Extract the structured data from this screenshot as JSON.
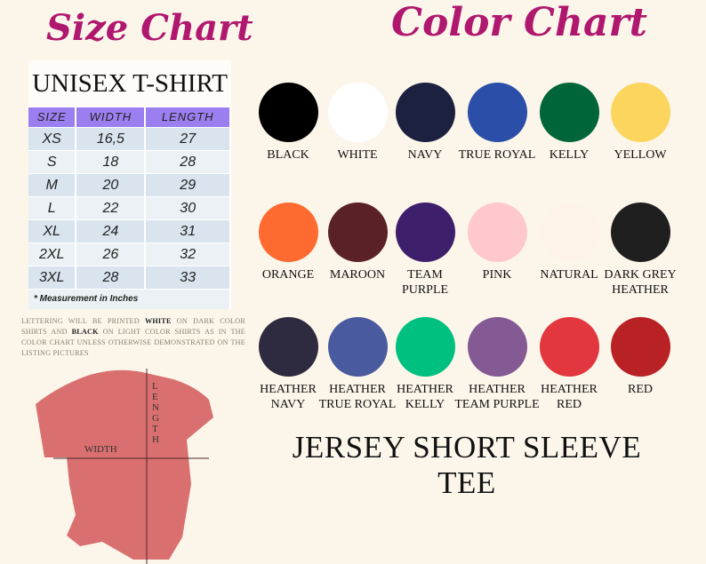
{
  "size_chart": {
    "title": "Size Chart",
    "heading": "UNISEX T-SHIRT",
    "columns": [
      "SIZE",
      "WIDTH",
      "LENGTH"
    ],
    "rows": [
      [
        "XS",
        "16,5",
        "27"
      ],
      [
        "S",
        "18",
        "28"
      ],
      [
        "M",
        "20",
        "29"
      ],
      [
        "L",
        "22",
        "30"
      ],
      [
        "XL",
        "24",
        "31"
      ],
      [
        "2XL",
        "26",
        "32"
      ],
      [
        "3XL",
        "28",
        "33"
      ]
    ],
    "note": "* Measurement in Inches",
    "lettering_pre": "Lettering will be printed ",
    "lettering_white": "WHITE",
    "lettering_mid": " on dark color shirts and ",
    "lettering_black": "BLACK",
    "lettering_post": " on light color shirts as in the color chart unless otherwise demonstrated on the listing pictures",
    "shirt_width_label": "WIDTH",
    "shirt_length_label": "LENGTH",
    "shirt_color": "#d9706f"
  },
  "color_chart": {
    "title": "Color Chart",
    "colors": [
      {
        "name": "BLACK",
        "hex": "#000000"
      },
      {
        "name": "WHITE",
        "hex": "#ffffff"
      },
      {
        "name": "NAVY",
        "hex": "#1c2140"
      },
      {
        "name": "TRUE ROYAL",
        "hex": "#2b4ea8"
      },
      {
        "name": "KELLY",
        "hex": "#00663a"
      },
      {
        "name": "YELLOW",
        "hex": "#fbd55e"
      },
      {
        "name": "ORANGE",
        "hex": "#ff6a30"
      },
      {
        "name": "MAROON",
        "hex": "#5a2226"
      },
      {
        "name": "TEAM\nPURPLE",
        "hex": "#3e1f6b"
      },
      {
        "name": "PINK",
        "hex": "#ffc8cc"
      },
      {
        "name": "NATURAL",
        "hex": "#fef3e8"
      },
      {
        "name": "DARK GREY\nHEATHER",
        "hex": "#1f1f1f"
      },
      {
        "name": "HEATHER\nNAVY",
        "hex": "#2e2b40"
      },
      {
        "name": "HEATHER\nTRUE ROYAL",
        "hex": "#4a5a9e"
      },
      {
        "name": "HEATHER\nKELLY",
        "hex": "#00c080"
      },
      {
        "name": "HEATHER\nTEAM PURPLE",
        "hex": "#845a94"
      },
      {
        "name": "HEATHER\nRED",
        "hex": "#e2373f"
      },
      {
        "name": "RED",
        "hex": "#b82224"
      }
    ],
    "subtitle": "JERSEY SHORT SLEEVE TEE"
  }
}
